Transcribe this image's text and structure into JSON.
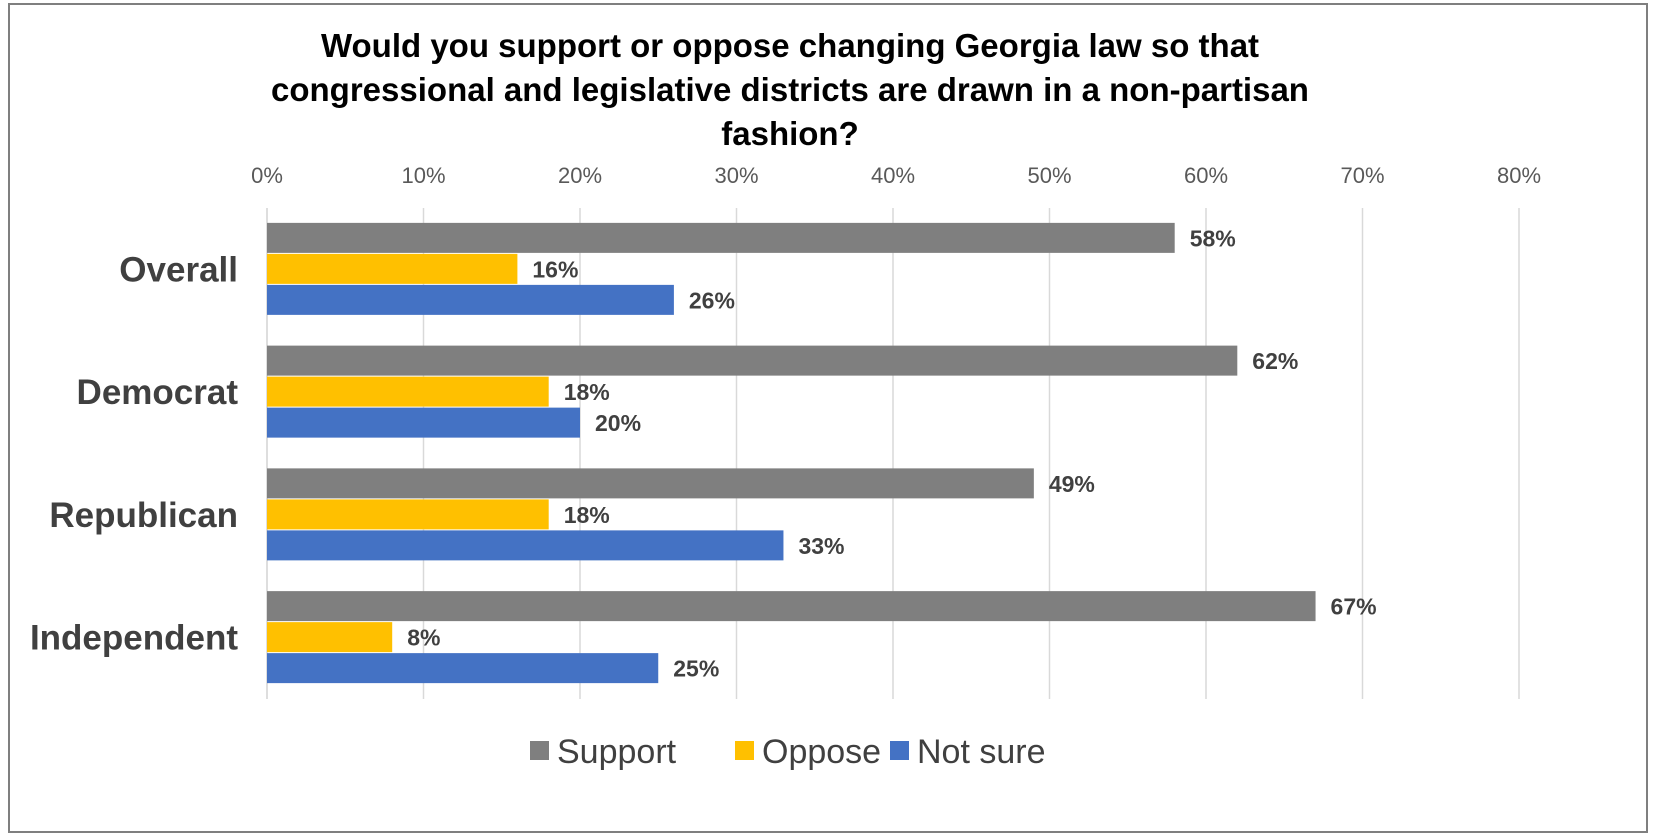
{
  "chart_data": {
    "type": "bar",
    "orientation": "horizontal",
    "title": "Would you support or oppose changing Georgia law so that congressional and legislative districts are drawn in a non-partisan fashion?",
    "title_lines": [
      "Would you support or oppose changing Georgia law so that",
      "congressional and legislative districts are drawn in a non-partisan",
      "fashion?"
    ],
    "categories": [
      "Overall",
      "Democrat",
      "Republican",
      "Independent"
    ],
    "series": [
      {
        "name": "Support",
        "color": "#7f7f7f",
        "values": [
          58,
          62,
          49,
          67
        ],
        "labels": [
          "58%",
          "62%",
          "49%",
          "67%"
        ]
      },
      {
        "name": "Oppose",
        "color": "#ffc000",
        "values": [
          16,
          18,
          18,
          8
        ],
        "labels": [
          "16%",
          "18%",
          "18%",
          "8%"
        ]
      },
      {
        "name": "Not sure",
        "color": "#4472c4",
        "values": [
          26,
          20,
          33,
          25
        ],
        "labels": [
          "26%",
          "20%",
          "33%",
          "25%"
        ]
      }
    ],
    "xlim": [
      0,
      80
    ],
    "x_ticks": [
      0,
      10,
      20,
      30,
      40,
      50,
      60,
      70,
      80
    ],
    "x_tick_labels": [
      "0%",
      "10%",
      "20%",
      "30%",
      "40%",
      "50%",
      "60%",
      "70%",
      "80%"
    ],
    "x_axis_position": "top",
    "grid": true,
    "legend_position": "bottom"
  }
}
